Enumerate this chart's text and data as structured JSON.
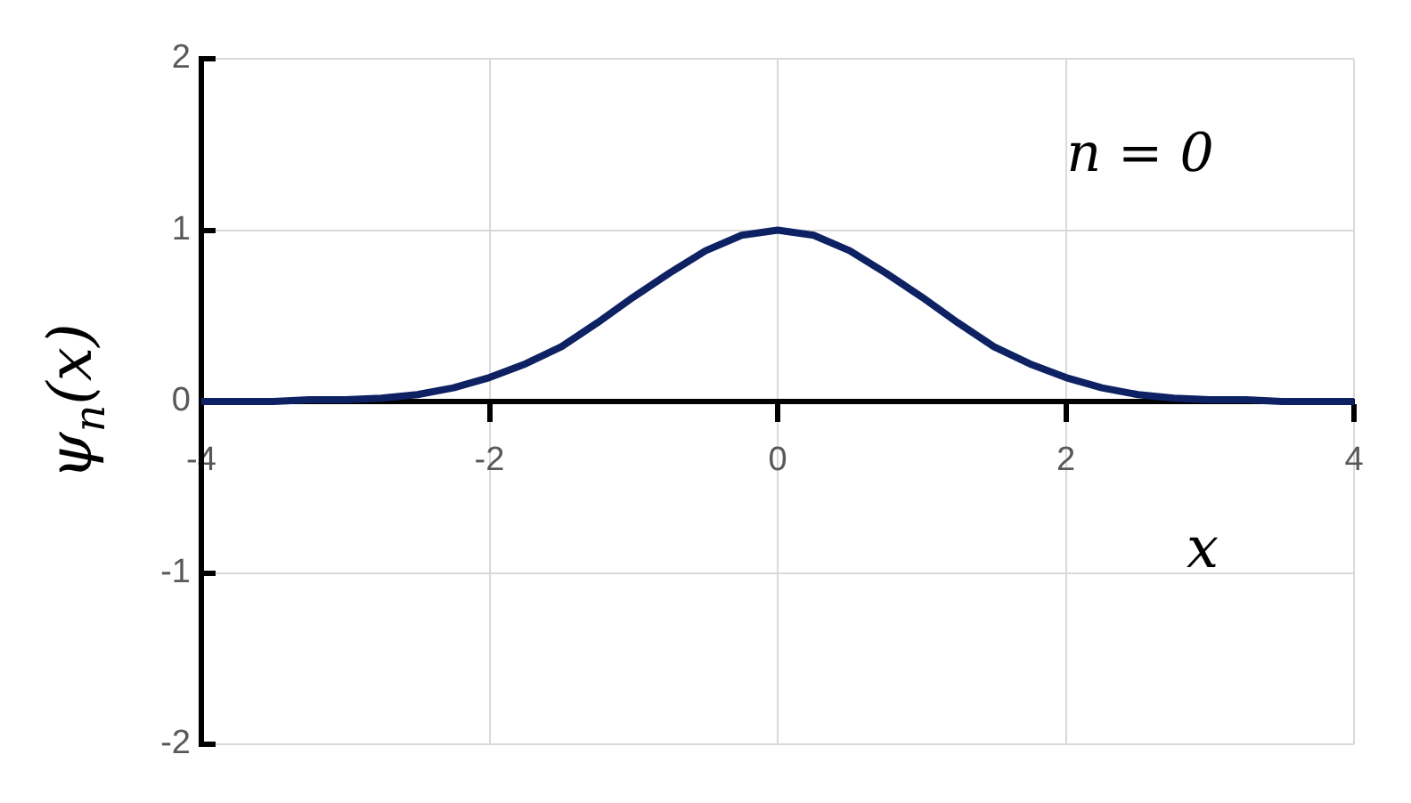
{
  "chart_data": {
    "type": "line",
    "xlabel": "x",
    "ylabel": "ψ$_{n}$(x)",
    "annotations": [
      "n = 0"
    ],
    "x": [
      -4,
      -3.5,
      -3.25,
      -3,
      -2.75,
      -2.5,
      -2.25,
      -2,
      -1.75,
      -1.5,
      -1.25,
      -1,
      -0.75,
      -0.5,
      -0.25,
      0,
      0.25,
      0.5,
      0.75,
      1,
      1.25,
      1.5,
      1.75,
      2,
      2.25,
      2.5,
      2.75,
      3,
      3.25,
      3.5,
      4
    ],
    "series": [
      {
        "color": "#0d2163",
        "values": [
          0,
          0,
          0.01,
          0.01,
          0.02,
          0.04,
          0.08,
          0.14,
          0.22,
          0.32,
          0.46,
          0.61,
          0.75,
          0.88,
          0.97,
          1,
          0.97,
          0.88,
          0.75,
          0.61,
          0.46,
          0.32,
          0.22,
          0.14,
          0.08,
          0.04,
          0.02,
          0.01,
          0.01,
          0,
          0
        ]
      }
    ],
    "xlim": [
      -4,
      4
    ],
    "xticks": [
      -4,
      -2,
      0,
      2,
      4
    ],
    "ylim": [
      -2,
      2
    ],
    "yticks": [
      -2,
      -1,
      0,
      1,
      2
    ],
    "grid": true,
    "legend": false,
    "marker": "none",
    "line_style": "solid"
  }
}
